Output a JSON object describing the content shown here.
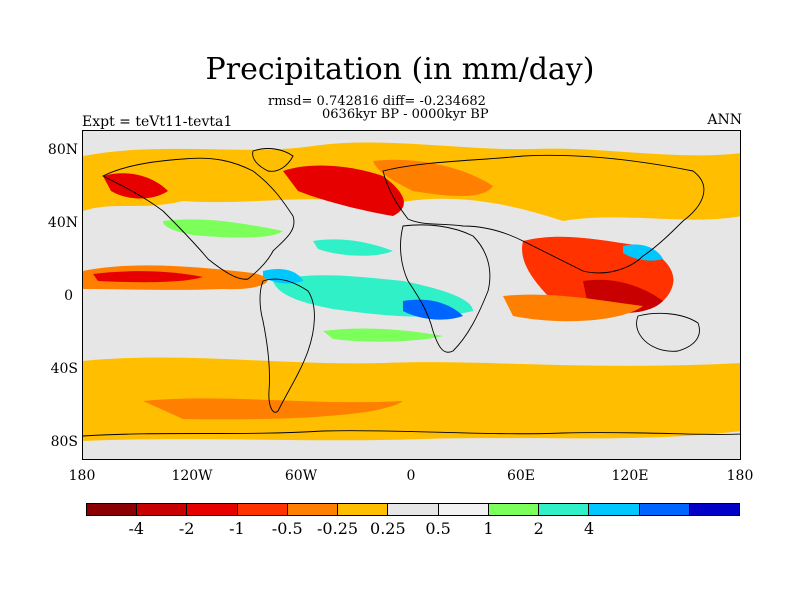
{
  "title": "Precipitation (in mm/day)",
  "stats_line": "rmsd= 0.742816 diff= -0.234682",
  "period_line": "0636kyr BP - 0000kyr BP",
  "experiment_label": "Expt = teVt11-tevta1",
  "season_label": "ANN",
  "map": {
    "projection": "cylindrical-equidistant",
    "lon_range": [
      -180,
      180
    ],
    "lat_range": [
      -90,
      90
    ],
    "background_color": "#e6e6e6",
    "y_ticks": [
      "80N",
      "40N",
      "0",
      "40S",
      "80S"
    ],
    "x_ticks": [
      "180",
      "120W",
      "60W",
      "0",
      "60E",
      "120E",
      "180"
    ]
  },
  "colorbar": {
    "colors": [
      "#8b0000",
      "#c80000",
      "#e60000",
      "#ff3200",
      "#ff7f00",
      "#ffbf00",
      "#e6e6e6",
      "#f2f2f2",
      "#7cff5a",
      "#30f0c8",
      "#00c8ff",
      "#0064ff",
      "#0000c8"
    ],
    "labels": [
      "-4",
      "-2",
      "-1",
      "-0.5",
      "-0.25",
      "0.25",
      "0.5",
      "1",
      "2",
      "4"
    ]
  }
}
